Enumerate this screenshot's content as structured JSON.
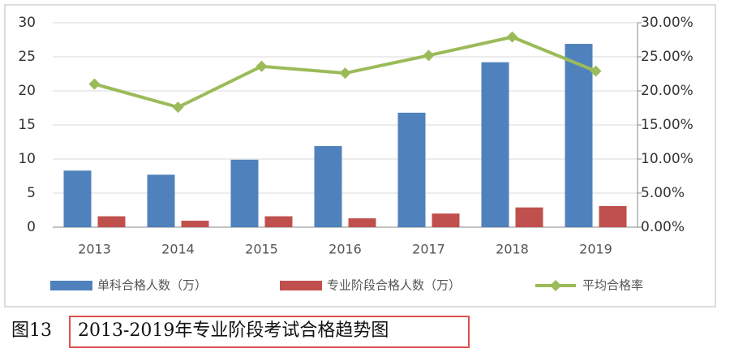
{
  "chart_data": {
    "type": "bar",
    "categories": [
      "2013",
      "2014",
      "2015",
      "2016",
      "2017",
      "2018",
      "2019"
    ],
    "series": [
      {
        "name": "单科合格人数（万）",
        "type": "bar",
        "color": "#4f81bd",
        "values": [
          8.3,
          7.7,
          9.9,
          11.9,
          16.8,
          24.2,
          26.9
        ]
      },
      {
        "name": "专业阶段合格人数（万）",
        "type": "bar",
        "color": "#c0504d",
        "values": [
          1.6,
          0.95,
          1.6,
          1.3,
          2.0,
          2.9,
          3.1
        ]
      },
      {
        "name": "平均合格率",
        "type": "line",
        "axis": "y2",
        "color": "#9bbb59",
        "values": [
          21.0,
          17.6,
          23.6,
          22.6,
          25.2,
          27.9,
          22.9
        ]
      }
    ],
    "ylim": [
      0,
      30
    ],
    "yticks": [
      0,
      5,
      10,
      15,
      20,
      25,
      30
    ],
    "y2lim": [
      0,
      30
    ],
    "y2ticks": [
      {
        "value": 0,
        "label": "0.00%"
      },
      {
        "value": 5,
        "label": "5.00%"
      },
      {
        "value": 10,
        "label": "10.00%"
      },
      {
        "value": 15,
        "label": "15.00%"
      },
      {
        "value": 20,
        "label": "20.00%"
      },
      {
        "value": 25,
        "label": "25.00%"
      },
      {
        "value": 30,
        "label": "30.00%"
      }
    ],
    "grid": true,
    "legend": "bottom",
    "caption": {
      "number": "图13",
      "title": "2013-2019年专业阶段考试合格趋势图"
    }
  }
}
